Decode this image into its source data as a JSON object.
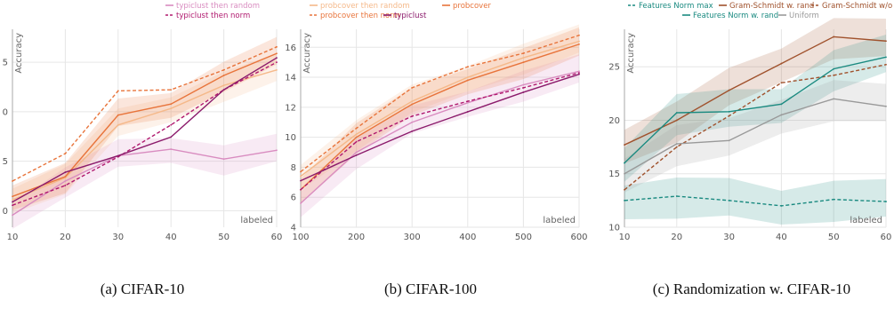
{
  "legend_top": {
    "entries": [
      {
        "label": "typiclust then random",
        "color": "#d98cc0",
        "dash": "solid"
      },
      {
        "label": "probcover then random",
        "color": "#f5b98a",
        "dash": "solid"
      },
      {
        "label": "probcover",
        "color": "#e8743b",
        "dash": "solid"
      },
      {
        "label": "typiclust then norm",
        "color": "#b0186e",
        "dash": "dashed"
      },
      {
        "label": "probcover then norm",
        "color": "#e8743b",
        "dash": "dashed"
      },
      {
        "label": "typiclust",
        "color": "#8b1a6b",
        "dash": "solid"
      }
    ]
  },
  "legend_right": {
    "entries": [
      {
        "label": "Features Norm max",
        "color": "#1a8a80",
        "dash": "dashed"
      },
      {
        "label": "Gram-Schmidt w. rand",
        "color": "#a0522d",
        "dash": "solid"
      },
      {
        "label": "Gram-Schmidt w/o rand",
        "color": "#a0522d",
        "dash": "dashed"
      },
      {
        "label": "Features Norm w. rand",
        "color": "#1a8a80",
        "dash": "solid"
      },
      {
        "label": "Uniform",
        "color": "#999999",
        "dash": "solid"
      }
    ]
  },
  "chart_data": [
    {
      "type": "line",
      "caption": "(a) CIFAR-10",
      "ylabel": "Accuracy",
      "xlabel": "labeled",
      "x": [
        10,
        20,
        30,
        40,
        50,
        60
      ],
      "x_tick_labels": [
        "10",
        "20",
        "30",
        "40",
        "50",
        "60"
      ],
      "y_tick_labels": [
        "0",
        "5",
        "0",
        "5",
        "0"
      ],
      "xlim": [
        10,
        60
      ],
      "ylim": [
        19,
        37
      ],
      "y_ticks": [
        20.5,
        25,
        29.5,
        34
      ],
      "grid": true,
      "series": [
        {
          "name": "typiclust then random",
          "color": "#d98cc0",
          "dash": "solid",
          "band": true,
          "values": [
            20.1,
            23.2,
            25.5,
            26.1,
            25.2,
            26.0
          ]
        },
        {
          "name": "probcover then random",
          "color": "#f5b98a",
          "dash": "solid",
          "band": true,
          "values": [
            21.5,
            23.5,
            28.3,
            29.8,
            31.9,
            33.3
          ]
        },
        {
          "name": "probcover",
          "color": "#e8743b",
          "dash": "solid",
          "band": true,
          "values": [
            21.8,
            23.6,
            29.2,
            30.2,
            32.8,
            34.8
          ]
        },
        {
          "name": "typiclust then norm",
          "color": "#b0186e",
          "dash": "dashed",
          "band": false,
          "values": [
            21.0,
            22.8,
            25.4,
            28.3,
            31.5,
            34.0
          ]
        },
        {
          "name": "probcover then norm",
          "color": "#e8743b",
          "dash": "dashed",
          "band": false,
          "values": [
            23.2,
            25.7,
            31.4,
            31.5,
            33.3,
            35.4
          ]
        },
        {
          "name": "typiclust",
          "color": "#8b1a6b",
          "dash": "solid",
          "band": false,
          "values": [
            21.3,
            24.0,
            25.5,
            27.2,
            31.5,
            34.4
          ]
        }
      ]
    },
    {
      "type": "line",
      "caption": "(b) CIFAR-100",
      "ylabel": "Accuracy",
      "xlabel": "labeled",
      "x": [
        100,
        200,
        300,
        400,
        500,
        600
      ],
      "x_tick_labels": [
        "100",
        "200",
        "300",
        "400",
        "500",
        "600"
      ],
      "y_tick_labels": [
        "4",
        "6",
        "8",
        "10",
        "12",
        "14",
        "16"
      ],
      "xlim": [
        100,
        600
      ],
      "ylim": [
        4,
        17.2
      ],
      "y_ticks": [
        4,
        6,
        8,
        10,
        12,
        14,
        16
      ],
      "grid": true,
      "series": [
        {
          "name": "typiclust then random",
          "color": "#d98cc0",
          "dash": "solid",
          "band": true,
          "values": [
            5.6,
            9.0,
            11.0,
            12.3,
            13.5,
            14.4
          ]
        },
        {
          "name": "probcover then random",
          "color": "#f5b98a",
          "dash": "solid",
          "band": true,
          "values": [
            7.4,
            10.2,
            12.4,
            14.0,
            15.3,
            16.4
          ]
        },
        {
          "name": "probcover",
          "color": "#e8743b",
          "dash": "solid",
          "band": true,
          "values": [
            6.5,
            10.0,
            12.2,
            13.8,
            15.0,
            16.2
          ]
        },
        {
          "name": "typiclust then norm",
          "color": "#b0186e",
          "dash": "dashed",
          "band": false,
          "values": [
            6.5,
            9.7,
            11.4,
            12.4,
            13.3,
            14.3
          ]
        },
        {
          "name": "probcover then norm",
          "color": "#e8743b",
          "dash": "dashed",
          "band": false,
          "values": [
            7.7,
            10.6,
            13.3,
            14.7,
            15.6,
            16.8
          ]
        },
        {
          "name": "typiclust",
          "color": "#8b1a6b",
          "dash": "solid",
          "band": false,
          "values": [
            7.1,
            8.8,
            10.4,
            11.7,
            13.0,
            14.2
          ]
        }
      ]
    },
    {
      "type": "line",
      "caption": "(c) Randomization w. CIFAR-10",
      "ylabel": "Accuracy",
      "xlabel": "labeled",
      "x": [
        10,
        20,
        30,
        40,
        50,
        60
      ],
      "x_tick_labels": [
        "10",
        "20",
        "30",
        "40",
        "50",
        "60"
      ],
      "y_tick_labels": [
        "10",
        "15",
        "20",
        "25"
      ],
      "xlim": [
        10,
        60
      ],
      "ylim": [
        10,
        28.5
      ],
      "y_ticks": [
        10,
        15,
        20,
        25
      ],
      "grid": true,
      "series": [
        {
          "name": "Features Norm max",
          "color": "#1a8a80",
          "dash": "dashed",
          "band": true,
          "values": [
            12.5,
            12.9,
            12.5,
            12.0,
            12.6,
            12.4
          ]
        },
        {
          "name": "Gram-Schmidt w. rand",
          "color": "#a0522d",
          "dash": "solid",
          "band": true,
          "values": [
            17.7,
            20.0,
            22.8,
            25.3,
            27.8,
            27.4
          ]
        },
        {
          "name": "Gram-Schmidt w/o rand",
          "color": "#a0522d",
          "dash": "dashed",
          "band": false,
          "values": [
            13.5,
            17.5,
            20.4,
            23.5,
            24.2,
            25.2
          ]
        },
        {
          "name": "Features Norm w. rand",
          "color": "#1a8a80",
          "dash": "solid",
          "band": true,
          "values": [
            16.0,
            20.7,
            20.8,
            21.5,
            24.8,
            25.9
          ]
        },
        {
          "name": "Uniform",
          "color": "#999999",
          "dash": "solid",
          "band": true,
          "values": [
            15.0,
            17.8,
            18.1,
            20.5,
            22.0,
            21.3
          ]
        }
      ]
    }
  ]
}
